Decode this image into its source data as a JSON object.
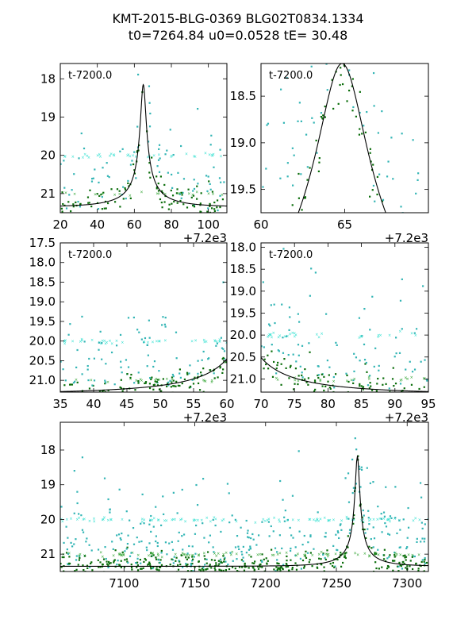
{
  "title": {
    "line1": "KMT-2015-BLG-0369 BLG02T0834.1334",
    "line2": "t0=7264.84 u0=0.0528 tE=  30.48"
  },
  "chart_data": [
    {
      "type": "scatter",
      "annotation": "t-7200.0",
      "offset_label": "+7.2e3",
      "xlim": [
        20,
        110
      ],
      "ylim": [
        21.5,
        17.6
      ],
      "xticks": [
        "20",
        "40",
        "60",
        "80",
        "100"
      ],
      "xtick_values": [
        20,
        40,
        60,
        80,
        100
      ],
      "yticks": [
        "18",
        "19",
        "20",
        "21"
      ],
      "ytick_values": [
        18,
        19,
        20,
        21
      ],
      "model": {
        "t0": 64.84,
        "u0": 0.0528,
        "tE": 30.48,
        "m_peak": 18.15,
        "m_base": 21.35
      }
    },
    {
      "type": "scatter",
      "annotation": "t-7200.0",
      "offset_label": "+7.2e3",
      "xlim": [
        60,
        70
      ],
      "ylim": [
        19.75,
        18.15
      ],
      "xticks": [
        "60",
        "65"
      ],
      "xtick_values": [
        60,
        65
      ],
      "yticks": [
        "18.5",
        "19.0",
        "19.5"
      ],
      "ytick_values": [
        18.5,
        19.0,
        19.5
      ],
      "model": {
        "t0": 64.84,
        "u0": 0.0528,
        "tE": 30.48,
        "m_peak": 18.15,
        "m_base": 21.35
      }
    },
    {
      "type": "scatter",
      "annotation": "t-7200.0",
      "offset_label": "+7.2e3",
      "xlim": [
        35,
        60
      ],
      "ylim": [
        21.3,
        17.5
      ],
      "xticks": [
        "35",
        "40",
        "45",
        "50",
        "55",
        "60"
      ],
      "xtick_values": [
        35,
        40,
        45,
        50,
        55,
        60
      ],
      "yticks": [
        "17.5",
        "18.0",
        "18.5",
        "19.0",
        "19.5",
        "20.0",
        "20.5",
        "21.0"
      ],
      "ytick_values": [
        17.5,
        18.0,
        18.5,
        19.0,
        19.5,
        20.0,
        20.5,
        21.0
      ],
      "model": {
        "t0": 64.84,
        "u0": 0.0528,
        "tE": 30.48,
        "m_peak": 18.15,
        "m_base": 21.35
      }
    },
    {
      "type": "scatter",
      "annotation": "t-7200.0",
      "offset_label": "+7.2e3",
      "xlim": [
        70,
        95
      ],
      "ylim": [
        21.3,
        17.9
      ],
      "xticks": [
        "70",
        "75",
        "80",
        "85",
        "90",
        "95"
      ],
      "xtick_values": [
        70,
        75,
        80,
        85,
        90,
        95
      ],
      "yticks": [
        "18.0",
        "18.5",
        "19.0",
        "19.5",
        "20.0",
        "20.5",
        "21.0"
      ],
      "ytick_values": [
        18.0,
        18.5,
        19.0,
        19.5,
        20.0,
        20.5,
        21.0
      ],
      "model": {
        "t0": 64.84,
        "u0": 0.0528,
        "tE": 30.48,
        "m_peak": 18.15,
        "m_base": 21.35
      }
    },
    {
      "type": "scatter",
      "annotation": "",
      "offset_label": "",
      "xlim": [
        7055,
        7315
      ],
      "ylim": [
        21.5,
        17.2
      ],
      "xticks": [
        "7100",
        "7150",
        "7200",
        "7250",
        "7300"
      ],
      "xtick_values": [
        7100,
        7150,
        7200,
        7250,
        7300
      ],
      "yticks": [
        "18",
        "19",
        "20",
        "21"
      ],
      "ytick_values": [
        18,
        19,
        20,
        21
      ],
      "model": {
        "t0": 7264.84,
        "u0": 0.0528,
        "tE": 30.48,
        "m_peak": 18.15,
        "m_base": 21.35
      }
    }
  ]
}
